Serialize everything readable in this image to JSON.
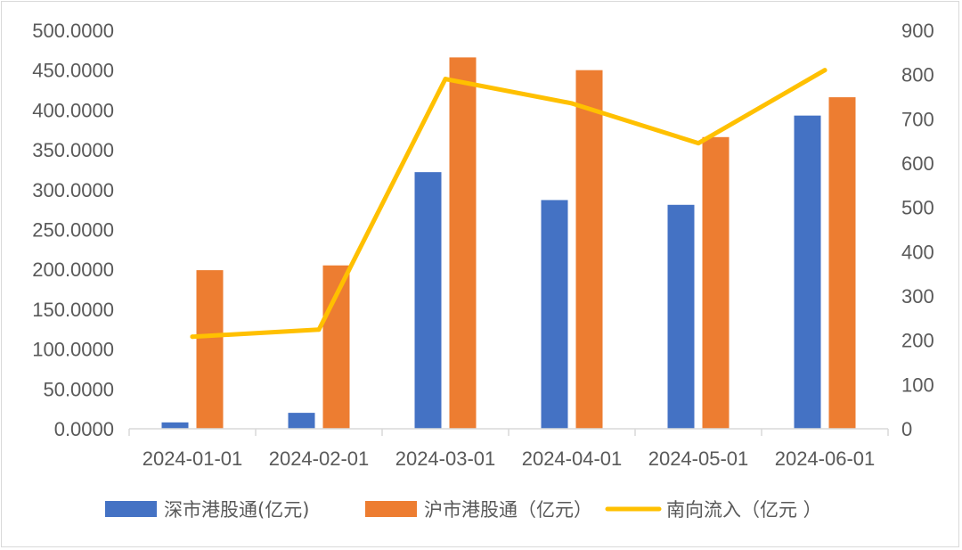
{
  "chart_data": {
    "type": "bar+line",
    "categories": [
      "2024-01-01",
      "2024-02-01",
      "2024-03-01",
      "2024-04-01",
      "2024-05-01",
      "2024-06-01"
    ],
    "series": [
      {
        "name": "深市港股通(亿元)",
        "type": "bar",
        "axis": "left",
        "color": "#4472C4",
        "values": [
          8,
          20,
          322,
          287,
          281,
          393
        ]
      },
      {
        "name": "沪市港股通（亿元）",
        "type": "bar",
        "axis": "left",
        "color": "#ED7D31",
        "values": [
          199,
          205,
          466,
          450,
          366,
          416
        ]
      },
      {
        "name": "南向流入（亿元 ）",
        "type": "line",
        "axis": "right",
        "color": "#FFC000",
        "values": [
          208,
          224,
          790,
          735,
          645,
          810
        ]
      }
    ],
    "y_left": {
      "min": 0,
      "max": 500,
      "step": 50,
      "tick_labels": [
        "0.0000",
        "50.0000",
        "100.0000",
        "150.0000",
        "200.0000",
        "250.0000",
        "300.0000",
        "350.0000",
        "400.0000",
        "450.0000",
        "500.0000"
      ]
    },
    "y_right": {
      "min": 0,
      "max": 900,
      "step": 100,
      "tick_labels": [
        "0",
        "100",
        "200",
        "300",
        "400",
        "500",
        "600",
        "700",
        "800",
        "900"
      ]
    },
    "grid": false,
    "legend_position": "bottom"
  }
}
